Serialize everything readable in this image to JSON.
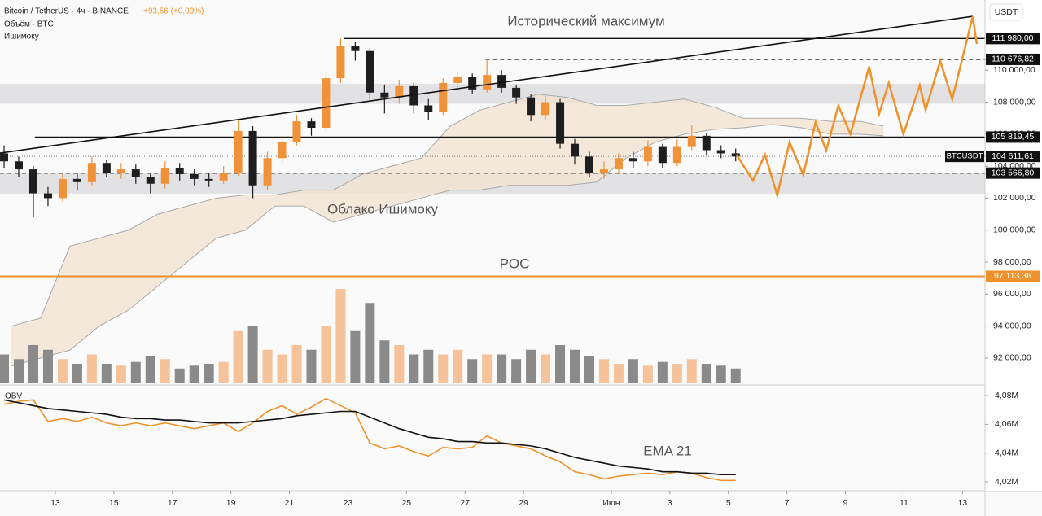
{
  "chart_data": {
    "type": "candlestick",
    "title": "Bitcoin / TetherUS · 4ч · BINANCE",
    "change_label": "+93,56 (+0,09%)",
    "volume_label": "Объём · BTC",
    "indicator_label": "Ишимоку",
    "currency": "USDT",
    "up_color": "#f0923a",
    "down_color": "#1e1e1e",
    "x": [
      11.25,
      11.75,
      12.25,
      12.75,
      13.25,
      13.75,
      14.25,
      14.75,
      15.25,
      15.75,
      16.25,
      16.75,
      17.25,
      17.75,
      18.25,
      18.75,
      19.25,
      19.75,
      20.25,
      20.75,
      21.25,
      21.75,
      22.25,
      22.75,
      23.25,
      23.75,
      24.25,
      24.75,
      25.25,
      25.75,
      26.25,
      26.75,
      27.25,
      27.75,
      28.25,
      28.75,
      29.25,
      29.75,
      30.25,
      30.75,
      31.25,
      31.75,
      32.25,
      32.75,
      33.25,
      33.75,
      34.25,
      34.75,
      35.25,
      35.75,
      36.25
    ],
    "open": [
      104800,
      104300,
      103800,
      102300,
      102000,
      103200,
      103000,
      104200,
      103600,
      103800,
      103300,
      102900,
      103900,
      103500,
      103200,
      103100,
      103600,
      106200,
      102800,
      104500,
      105500,
      106800,
      106400,
      109500,
      111500,
      111200,
      108600,
      108300,
      109000,
      107800,
      107400,
      109200,
      109600,
      108800,
      109700,
      108900,
      108300,
      107200,
      108000,
      105400,
      104600,
      103600,
      103800,
      104500,
      104300,
      105200,
      104200,
      105200,
      105900,
      105000,
      104800
    ],
    "high": [
      105300,
      104600,
      104000,
      102700,
      103500,
      103600,
      104600,
      104400,
      104200,
      104100,
      103600,
      104300,
      104200,
      103800,
      103600,
      104000,
      106900,
      106500,
      104900,
      105900,
      107200,
      107000,
      109900,
      111980,
      111800,
      111400,
      109100,
      109400,
      109200,
      108200,
      109500,
      109900,
      109800,
      110680,
      110000,
      109100,
      108500,
      108400,
      108200,
      105700,
      104900,
      104300,
      104800,
      104900,
      105600,
      105400,
      105700,
      106600,
      106100,
      105300,
      105100
    ],
    "low": [
      103900,
      103300,
      100800,
      101500,
      101800,
      102500,
      102800,
      103300,
      103200,
      102900,
      102300,
      102600,
      103100,
      102800,
      102700,
      102900,
      103400,
      102000,
      102500,
      104200,
      105300,
      105900,
      106200,
      109200,
      110600,
      108200,
      107300,
      107900,
      107300,
      106900,
      107200,
      108900,
      108500,
      108600,
      108600,
      107900,
      106800,
      106900,
      105100,
      104100,
      103300,
      103200,
      103500,
      103900,
      104000,
      103900,
      104000,
      105000,
      104700,
      104500,
      104300
    ],
    "close": [
      104300,
      103800,
      102300,
      102000,
      103200,
      103000,
      104200,
      103600,
      103800,
      103300,
      102900,
      103900,
      103500,
      103200,
      103100,
      103600,
      106200,
      102800,
      104500,
      105500,
      106800,
      106400,
      109500,
      111500,
      111200,
      108600,
      108300,
      109000,
      107800,
      107400,
      109200,
      109600,
      108800,
      109700,
      108900,
      108300,
      107200,
      108000,
      105400,
      104600,
      103600,
      103800,
      104500,
      104300,
      105200,
      104200,
      105200,
      105900,
      105000,
      104800,
      104600
    ],
    "xlim": [
      11.11,
      44.77
    ],
    "xticks": [
      13,
      15,
      17,
      19,
      21,
      23,
      25,
      27,
      29,
      {
        "value": 32,
        "label": "Июн"
      },
      {
        "value": 34,
        "label": "3"
      },
      {
        "value": 36,
        "label": "5"
      },
      {
        "value": 38,
        "label": "7"
      },
      {
        "value": 40,
        "label": "9"
      },
      {
        "value": 42,
        "label": "11"
      },
      {
        "value": 44,
        "label": "13"
      }
    ],
    "ylim": [
      90470,
      114390
    ],
    "yticks": [
      {
        "value": 92000,
        "label": "92 000,00"
      },
      {
        "value": 94000,
        "label": "94 000,00"
      },
      {
        "value": 96000,
        "label": "96 000,00"
      },
      {
        "value": 98000,
        "label": "98 000,00"
      },
      {
        "value": 100000,
        "label": "100 000,00"
      },
      {
        "value": 102000,
        "label": "102 000,00"
      },
      {
        "value": 104000,
        "label": "104 000,00"
      },
      {
        "value": 106000,
        "label": "106 000,00"
      },
      {
        "value": 108000,
        "label": "108 000,00"
      },
      {
        "value": 110000,
        "label": "110 000,00"
      }
    ],
    "volume": {
      "lim": [
        0,
        100
      ],
      "up_color": "#f5c29a",
      "down_color": "#8a8a8a",
      "values": [
        30,
        25,
        40,
        35,
        25,
        20,
        30,
        20,
        18,
        22,
        28,
        25,
        15,
        18,
        20,
        22,
        55,
        60,
        35,
        30,
        40,
        35,
        60,
        100,
        55,
        85,
        45,
        40,
        30,
        35,
        30,
        35,
        25,
        30,
        30,
        25,
        35,
        30,
        40,
        35,
        28,
        25,
        20,
        25,
        18,
        22,
        20,
        25,
        20,
        18,
        15
      ]
    },
    "cloud": {
      "label": "Облако Ишимоку",
      "color": "#f3e3d2",
      "x": [
        11.5,
        12.5,
        13.5,
        14.5,
        15.5,
        16.5,
        17.5,
        18.5,
        19.5,
        20.5,
        21.5,
        22.5,
        23.5,
        24.5,
        25.5,
        26.5,
        27.5,
        28.5,
        29.5,
        30.5,
        31.5,
        32.5,
        33.5,
        34.5,
        35.5,
        36.5,
        37.5,
        38.5,
        39.5,
        40.5,
        41.3
      ],
      "upper": [
        94000,
        94500,
        99000,
        99500,
        100000,
        101000,
        101500,
        102000,
        102200,
        102200,
        102500,
        102500,
        103500,
        104000,
        104500,
        106500,
        107500,
        108000,
        108500,
        108300,
        107800,
        107800,
        108000,
        108200,
        107700,
        107000,
        107000,
        107000,
        106800,
        106800,
        106500
      ],
      "lower": [
        91500,
        92000,
        92500,
        94000,
        95000,
        96500,
        98000,
        99500,
        100000,
        101500,
        101500,
        100500,
        101000,
        101500,
        102000,
        102500,
        102500,
        102800,
        102800,
        102800,
        103000,
        104500,
        105500,
        106000,
        106300,
        106400,
        106600,
        106400,
        106000,
        106000,
        105900
      ]
    },
    "zones": [
      {
        "from": 107900,
        "to": 109150
      },
      {
        "from": 102280,
        "to": 103550
      }
    ],
    "levels": [
      {
        "value": 111980,
        "label": "111 980,00",
        "style": "solid",
        "from": 22.87,
        "color": "#111111"
      },
      {
        "value": 110676.82,
        "label": "110 676,82",
        "style": "dashed",
        "from": 27.7,
        "color": "#111111"
      },
      {
        "value": 105819.45,
        "label": "105 819,45",
        "style": "solid",
        "from": 12.3,
        "color": "#111111"
      },
      {
        "value": 103566.8,
        "label": "103 566,80",
        "style": "dashed",
        "from": 11.11,
        "color": "#111111"
      },
      {
        "value": 97113.36,
        "label": "97 113,36",
        "name": "POC",
        "style": "solid",
        "from": 11.11,
        "color": "#f0922b"
      }
    ],
    "last_price": {
      "value": 104611.61,
      "label": "104 611,61",
      "symbol": "BTCUSDT"
    },
    "ath_label": "Исторический максимум",
    "trendline": {
      "x": [
        11.11,
        44.35
      ],
      "y": [
        104820,
        113370
      ]
    },
    "projection": {
      "color": "#f0922b",
      "x": [
        36.28,
        36.84,
        37.25,
        37.67,
        38.09,
        38.56,
        38.98,
        39.34,
        39.76,
        40.17,
        40.81,
        41.15,
        41.48,
        41.98,
        42.54,
        42.74,
        43.24,
        43.65,
        44.35,
        44.49
      ],
      "y": [
        104720,
        103090,
        104720,
        102180,
        105490,
        103450,
        106760,
        104980,
        107780,
        106000,
        110220,
        107270,
        109200,
        106000,
        109050,
        107520,
        110580,
        108180,
        113370,
        111640
      ]
    },
    "obv": {
      "label": "OBV",
      "color": "#f0922b",
      "ylim": [
        4.0138,
        4.0857
      ],
      "yticks": [
        {
          "value": 4.02,
          "label": "4,02M"
        },
        {
          "value": 4.04,
          "label": "4,04M"
        },
        {
          "value": 4.06,
          "label": "4,06M"
        },
        {
          "value": 4.08,
          "label": "4,08M"
        }
      ],
      "values": [
        4.074,
        4.076,
        4.077,
        4.062,
        4.064,
        4.062,
        4.065,
        4.061,
        4.059,
        4.061,
        4.059,
        4.061,
        4.059,
        4.057,
        4.059,
        4.061,
        4.055,
        4.061,
        4.069,
        4.073,
        4.067,
        4.072,
        4.078,
        4.073,
        4.068,
        4.047,
        4.043,
        4.045,
        4.041,
        4.038,
        4.044,
        4.043,
        4.044,
        4.052,
        4.047,
        4.045,
        4.043,
        4.038,
        4.034,
        4.027,
        4.025,
        4.022,
        4.024,
        4.025,
        4.026,
        4.025,
        4.027,
        4.026,
        4.023,
        4.021,
        4.021
      ],
      "ema": {
        "label": "EMA 21",
        "color": "#111111",
        "values": [
          4.077,
          4.075,
          4.073,
          4.071,
          4.07,
          4.069,
          4.068,
          4.067,
          4.065,
          4.064,
          4.064,
          4.063,
          4.063,
          4.062,
          4.061,
          4.061,
          4.061,
          4.062,
          4.063,
          4.064,
          4.066,
          4.067,
          4.068,
          4.069,
          4.069,
          4.065,
          4.061,
          4.057,
          4.054,
          4.051,
          4.05,
          4.048,
          4.048,
          4.047,
          4.047,
          4.046,
          4.045,
          4.043,
          4.04,
          4.037,
          4.035,
          4.033,
          4.031,
          4.03,
          4.029,
          4.027,
          4.027,
          4.026,
          4.026,
          4.025,
          4.025
        ]
      }
    }
  }
}
